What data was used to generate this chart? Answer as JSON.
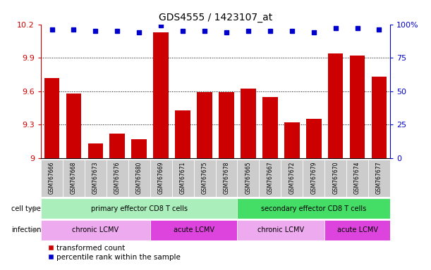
{
  "title": "GDS4555 / 1423107_at",
  "samples": [
    "GSM767666",
    "GSM767668",
    "GSM767673",
    "GSM767676",
    "GSM767680",
    "GSM767669",
    "GSM767671",
    "GSM767675",
    "GSM767678",
    "GSM767665",
    "GSM767667",
    "GSM767672",
    "GSM767679",
    "GSM767670",
    "GSM767674",
    "GSM767677"
  ],
  "bar_values": [
    9.72,
    9.58,
    9.13,
    9.22,
    9.17,
    10.13,
    9.43,
    9.59,
    9.59,
    9.62,
    9.55,
    9.32,
    9.35,
    9.94,
    9.92,
    9.73
  ],
  "percentile_values": [
    96,
    96,
    95,
    95,
    94,
    99,
    95,
    95,
    94,
    95,
    95,
    95,
    94,
    97,
    97,
    96
  ],
  "bar_color": "#cc0000",
  "dot_color": "#0000cc",
  "ylim_left": [
    9.0,
    10.2
  ],
  "ylim_right": [
    0,
    100
  ],
  "yticks_left": [
    9.0,
    9.3,
    9.6,
    9.9,
    10.2
  ],
  "ytick_labels_left": [
    "9",
    "9.3",
    "9.6",
    "9.9",
    "10.2"
  ],
  "yticks_right": [
    0,
    25,
    50,
    75,
    100
  ],
  "ytick_labels_right": [
    "0",
    "25",
    "50",
    "75",
    "100%"
  ],
  "grid_values": [
    9.3,
    9.6,
    9.9
  ],
  "cell_type_groups": [
    {
      "label": "primary effector CD8 T cells",
      "start": 0,
      "end": 9,
      "color": "#aaeebb"
    },
    {
      "label": "secondary effector CD8 T cells",
      "start": 9,
      "end": 16,
      "color": "#44dd66"
    }
  ],
  "infection_groups": [
    {
      "label": "chronic LCMV",
      "start": 0,
      "end": 5,
      "color": "#eeaaee"
    },
    {
      "label": "acute LCMV",
      "start": 5,
      "end": 9,
      "color": "#dd44dd"
    },
    {
      "label": "chronic LCMV",
      "start": 9,
      "end": 13,
      "color": "#eeaaee"
    },
    {
      "label": "acute LCMV",
      "start": 13,
      "end": 16,
      "color": "#dd44dd"
    }
  ],
  "legend_red_label": "transformed count",
  "legend_blue_label": "percentile rank within the sample",
  "cell_type_label": "cell type",
  "infection_label": "infection",
  "right_axis_color": "#0000cc",
  "bar_width": 0.7,
  "xtick_bg_color": "#cccccc",
  "xlim": [
    -0.5,
    15.5
  ]
}
